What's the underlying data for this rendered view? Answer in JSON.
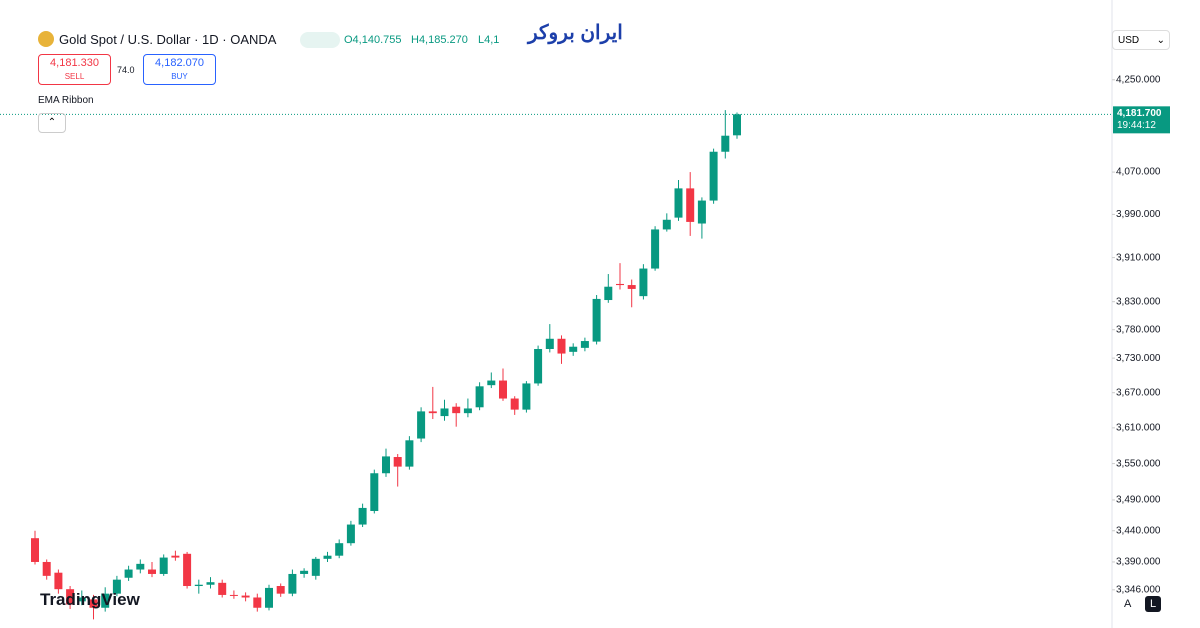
{
  "header": {
    "symbol": "Gold Spot / U.S. Dollar · 1D · OANDA",
    "open": "O4,140.755",
    "high": "H4,185.270",
    "low": "L4,1",
    "sell_price": "4,181.330",
    "sell": "SELL",
    "spread": "74.0",
    "buy_price": "4,182.070",
    "buy": "BUY",
    "indicator": "EMA Ribbon",
    "currency": "USD",
    "brand": "ایران بروکر",
    "logo": "TradingView",
    "scale_a": "A",
    "scale_l": "L"
  },
  "chart_data": {
    "type": "candlestick",
    "log": true,
    "up_color": "#089981",
    "down_color": "#f23645",
    "ylim": [
      3299,
      4412
    ],
    "yticks": [
      {
        "value": 4250,
        "label": "4,250.000"
      },
      {
        "value": 4070,
        "label": "4,070.000"
      },
      {
        "value": 3990,
        "label": "3,990.000"
      },
      {
        "value": 3910,
        "label": "3,910.000"
      },
      {
        "value": 3830,
        "label": "3,830.000"
      },
      {
        "value": 3780,
        "label": "3,780.000"
      },
      {
        "value": 3730,
        "label": "3,730.000"
      },
      {
        "value": 3670,
        "label": "3,670.000"
      },
      {
        "value": 3610,
        "label": "3,610.000"
      },
      {
        "value": 3550,
        "label": "3,550.000"
      },
      {
        "value": 3490,
        "label": "3,490.000"
      },
      {
        "value": 3440,
        "label": "3,440.000"
      },
      {
        "value": 3390,
        "label": "3,390.000"
      },
      {
        "value": 3346,
        "label": "3,346.000"
      }
    ],
    "last_price": {
      "value": 4181.7,
      "label": "4,181.700",
      "countdown": "19:44:12"
    },
    "open": [
      3428,
      3390,
      3373,
      3347,
      3328,
      3331,
      3318,
      3340,
      3365,
      3378,
      3378,
      3371,
      3400,
      3403,
      3352,
      3354,
      3357,
      3338,
      3337,
      3334,
      3318,
      3352,
      3340,
      3371,
      3368,
      3395,
      3400,
      3420,
      3450,
      3472,
      3534,
      3561,
      3545,
      3592,
      3638,
      3630,
      3646,
      3635,
      3645,
      3683,
      3691,
      3660,
      3641,
      3686,
      3746,
      3764,
      3741,
      3748,
      3759,
      3833,
      3862,
      3860,
      3840,
      3890,
      3962,
      3984,
      4039,
      3973,
      4016,
      4109,
      4140.755
    ],
    "high": [
      3440,
      3394,
      3378,
      3352,
      3345,
      3338,
      3350,
      3368,
      3384,
      3394,
      3390,
      3402,
      3408,
      3406,
      3362,
      3366,
      3362,
      3345,
      3342,
      3340,
      3354,
      3356,
      3378,
      3380,
      3398,
      3406,
      3426,
      3456,
      3484,
      3540,
      3575,
      3566,
      3596,
      3645,
      3680,
      3658,
      3652,
      3660,
      3688,
      3705,
      3712,
      3664,
      3690,
      3752,
      3790,
      3770,
      3756,
      3766,
      3842,
      3880,
      3900,
      3870,
      3898,
      3968,
      3992,
      4055,
      4070,
      4022,
      4115,
      4190,
      4185.27
    ],
    "low": [
      3386,
      3362,
      3340,
      3316,
      3322,
      3300,
      3312,
      3336,
      3360,
      3372,
      3366,
      3368,
      3392,
      3348,
      3340,
      3348,
      3334,
      3332,
      3328,
      3312,
      3314,
      3335,
      3336,
      3365,
      3362,
      3390,
      3396,
      3416,
      3446,
      3468,
      3528,
      3512,
      3540,
      3586,
      3625,
      3622,
      3612,
      3628,
      3640,
      3678,
      3656,
      3632,
      3636,
      3682,
      3740,
      3720,
      3734,
      3742,
      3754,
      3828,
      3852,
      3820,
      3834,
      3886,
      3958,
      3978,
      3950,
      3945,
      4010,
      4096,
      4134
    ],
    "close": [
      3390,
      3368,
      3347,
      3323,
      3334,
      3318,
      3340,
      3362,
      3378,
      3387,
      3371,
      3397,
      3397,
      3352,
      3354,
      3358,
      3338,
      3337,
      3334,
      3318,
      3349,
      3340,
      3371,
      3376,
      3395,
      3400,
      3420,
      3450,
      3477,
      3534,
      3562,
      3545,
      3589,
      3638,
      3635,
      3643,
      3635,
      3643,
      3681,
      3691,
      3660,
      3641,
      3686,
      3746,
      3764,
      3738,
      3750,
      3760,
      3835,
      3857,
      3860,
      3853,
      3890,
      3962,
      3980,
      4039,
      3976,
      4016,
      4109,
      4140,
      4181.7
    ]
  }
}
